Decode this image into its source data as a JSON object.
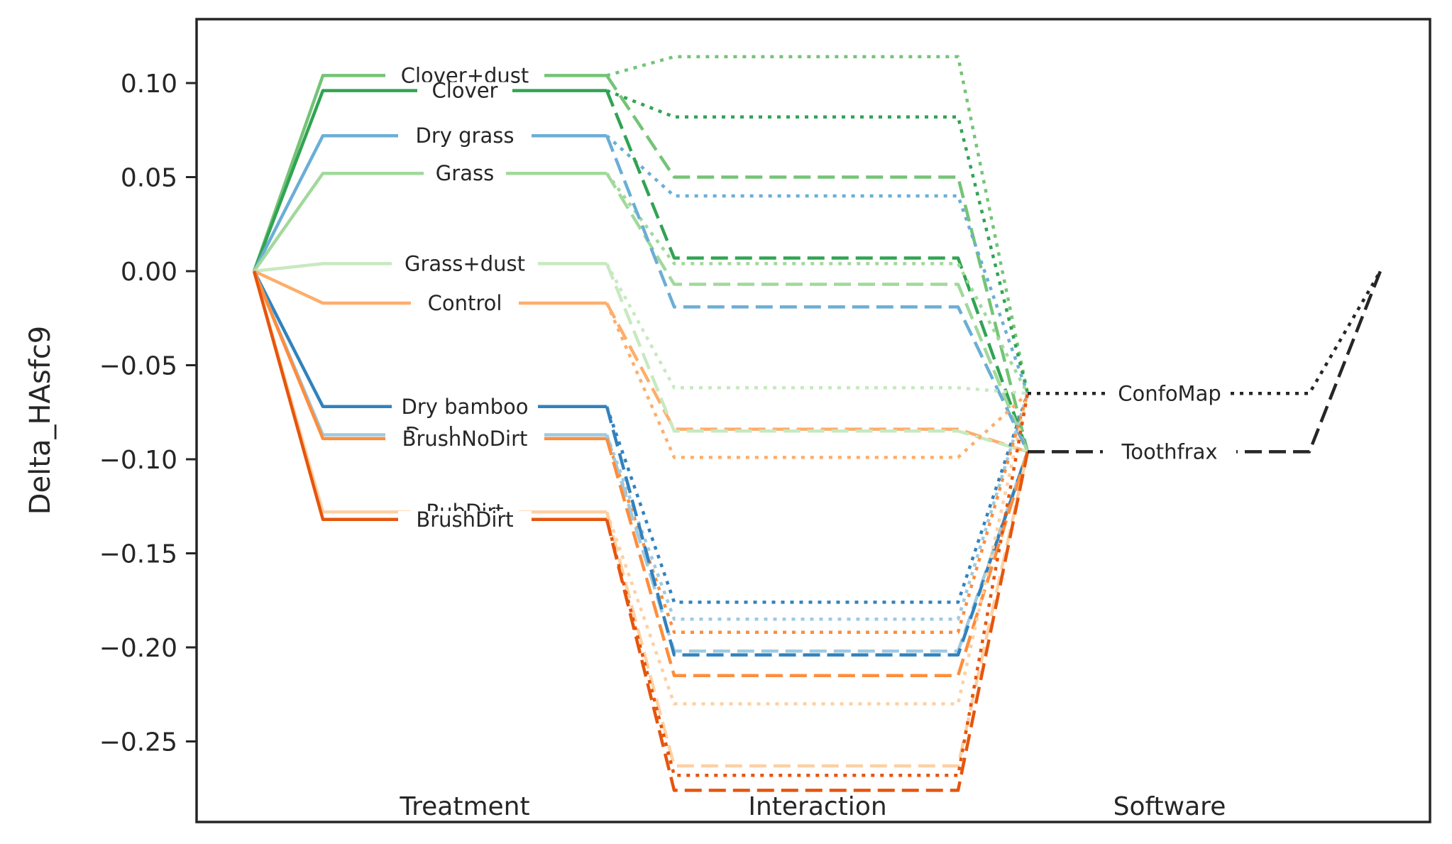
{
  "chart_data": {
    "type": "line",
    "title": "",
    "xlabel": "",
    "ylabel": "Delta_HAsfc9",
    "ylim": [
      -0.292,
      0.134
    ],
    "yticks": [
      0.1,
      0.05,
      0.0,
      -0.05,
      -0.1,
      -0.15,
      -0.2,
      -0.25
    ],
    "ytick_labels": [
      "0.10",
      "0.05",
      "0.00",
      "−0.05",
      "−0.10",
      "−0.15",
      "−0.20",
      "−0.25"
    ],
    "columns": [
      "Treatment",
      "Interaction",
      "Software"
    ],
    "grid": false,
    "legend": "none",
    "treatment_series": [
      {
        "name": "Clover+dust",
        "value": 0.104,
        "color": "#74c476"
      },
      {
        "name": "Clover",
        "value": 0.096,
        "color": "#31a354"
      },
      {
        "name": "Dry grass",
        "value": 0.072,
        "color": "#6baed6"
      },
      {
        "name": "Grass",
        "value": 0.052,
        "color": "#a1d99b"
      },
      {
        "name": "Grass+dust",
        "value": 0.004,
        "color": "#c7e9c0"
      },
      {
        "name": "Control",
        "value": -0.017,
        "color": "#fdae6b"
      },
      {
        "name": "Dry bamboo",
        "value": -0.072,
        "color": "#3182bd"
      },
      {
        "name": "Dry lucerne",
        "value": -0.087,
        "color": "#9ecae1"
      },
      {
        "name": "BrushNoDirt",
        "value": -0.089,
        "color": "#fd8d3c"
      },
      {
        "name": "RubDirt",
        "value": -0.128,
        "color": "#fdd0a2"
      },
      {
        "name": "BrushDirt",
        "value": -0.132,
        "color": "#e6550d"
      }
    ],
    "software_series": [
      {
        "name": "ConfoMap",
        "value": -0.065,
        "color": "#262626",
        "dash": "dotted"
      },
      {
        "name": "Toothfrax",
        "value": -0.096,
        "color": "#262626",
        "dash": "dashed"
      }
    ],
    "interaction_series": [
      {
        "treatment": "Clover+dust",
        "software": "ConfoMap",
        "value": 0.114
      },
      {
        "treatment": "Clover",
        "software": "ConfoMap",
        "value": 0.082
      },
      {
        "treatment": "Clover+dust",
        "software": "Toothfrax",
        "value": 0.05
      },
      {
        "treatment": "Dry grass",
        "software": "ConfoMap",
        "value": 0.04
      },
      {
        "treatment": "Clover",
        "software": "Toothfrax",
        "value": 0.007
      },
      {
        "treatment": "Grass",
        "software": "ConfoMap",
        "value": 0.004
      },
      {
        "treatment": "Grass",
        "software": "Toothfrax",
        "value": -0.007
      },
      {
        "treatment": "Dry grass",
        "software": "Toothfrax",
        "value": -0.019
      },
      {
        "treatment": "Grass+dust",
        "software": "ConfoMap",
        "value": -0.062
      },
      {
        "treatment": "Control",
        "software": "Toothfrax",
        "value": -0.084
      },
      {
        "treatment": "Grass+dust",
        "software": "Toothfrax",
        "value": -0.085
      },
      {
        "treatment": "Control",
        "software": "ConfoMap",
        "value": -0.099
      },
      {
        "treatment": "Dry bamboo",
        "software": "ConfoMap",
        "value": -0.176
      },
      {
        "treatment": "Dry lucerne",
        "software": "ConfoMap",
        "value": -0.185
      },
      {
        "treatment": "BrushNoDirt",
        "software": "ConfoMap",
        "value": -0.192
      },
      {
        "treatment": "Dry lucerne",
        "software": "Toothfrax",
        "value": -0.202
      },
      {
        "treatment": "Dry bamboo",
        "software": "Toothfrax",
        "value": -0.204
      },
      {
        "treatment": "BrushNoDirt",
        "software": "Toothfrax",
        "value": -0.215
      },
      {
        "treatment": "RubDirt",
        "software": "ConfoMap",
        "value": -0.23
      },
      {
        "treatment": "RubDirt",
        "software": "Toothfrax",
        "value": -0.263
      },
      {
        "treatment": "BrushDirt",
        "software": "ConfoMap",
        "value": -0.268
      },
      {
        "treatment": "BrushDirt",
        "software": "Toothfrax",
        "value": -0.276
      }
    ]
  }
}
